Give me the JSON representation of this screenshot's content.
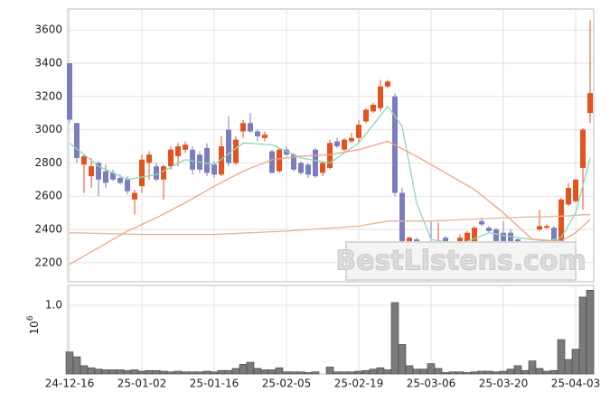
{
  "chart_data": {
    "type": "candlestick",
    "watermark": "BestListens.com",
    "categories": [
      "24-12-16",
      null,
      null,
      null,
      null,
      null,
      null,
      null,
      null,
      null,
      "25-01-02",
      null,
      null,
      null,
      null,
      null,
      null,
      null,
      null,
      null,
      "25-01-16",
      null,
      null,
      null,
      null,
      null,
      null,
      null,
      null,
      null,
      "25-02-05",
      null,
      null,
      null,
      null,
      null,
      null,
      null,
      null,
      null,
      "25-02-19",
      null,
      null,
      null,
      null,
      null,
      null,
      null,
      null,
      null,
      "25-03-06",
      null,
      null,
      null,
      null,
      null,
      null,
      null,
      null,
      null,
      "25-03-20",
      null,
      null,
      null,
      null,
      null,
      null,
      null,
      null,
      null,
      "25-04-03",
      null,
      null
    ],
    "open": [
      3400,
      3040,
      2790,
      2720,
      2800,
      2750,
      2740,
      2710,
      2700,
      2580,
      2660,
      2800,
      2780,
      2700,
      2780,
      2840,
      2880,
      2880,
      2850,
      2890,
      2790,
      2730,
      3000,
      2800,
      2990,
      3040,
      2990,
      2950,
      2870,
      2750,
      2880,
      2850,
      2800,
      2790,
      2880,
      2740,
      2770,
      2930,
      2880,
      2930,
      2950,
      3050,
      3110,
      3130,
      3260,
      3200,
      2620,
      2300,
      2340,
      2300,
      2310,
      2300,
      2350,
      2300,
      2290,
      2300,
      2320,
      2450,
      2410,
      2400,
      2380,
      2380,
      2340,
      2320,
      2300,
      2400,
      2410,
      2410,
      2310,
      2550,
      2570,
      2770,
      3100
    ],
    "high": [
      3400,
      3040,
      2850,
      2830,
      2810,
      2790,
      2760,
      2730,
      2720,
      2640,
      2850,
      2870,
      2800,
      2790,
      2900,
      2920,
      2930,
      2900,
      2870,
      2920,
      2810,
      2960,
      3080,
      2960,
      3060,
      3100,
      3000,
      2990,
      2880,
      2890,
      2900,
      2860,
      2810,
      2800,
      2890,
      2810,
      2940,
      2950,
      2950,
      2980,
      3060,
      3130,
      3160,
      3300,
      3300,
      3220,
      2650,
      2360,
      2350,
      2320,
      2450,
      2440,
      2360,
      2310,
      2370,
      2390,
      2420,
      2470,
      2420,
      2410,
      2450,
      2400,
      2350,
      2330,
      2310,
      2520,
      2430,
      2420,
      2590,
      2680,
      2700,
      3010,
      3660
    ],
    "low": [
      3040,
      2800,
      2620,
      2650,
      2600,
      2650,
      2690,
      2670,
      2610,
      2490,
      2620,
      2700,
      2690,
      2580,
      2760,
      2780,
      2860,
      2730,
      2740,
      2720,
      2710,
      2720,
      2780,
      2790,
      2950,
      2980,
      2930,
      2930,
      2740,
      2740,
      2840,
      2750,
      2730,
      2710,
      2710,
      2720,
      2760,
      2890,
      2870,
      2920,
      2920,
      3040,
      3100,
      3110,
      3250,
      2600,
      2270,
      2270,
      2260,
      2280,
      2280,
      2290,
      2280,
      2270,
      2280,
      2290,
      2310,
      2420,
      2380,
      2320,
      2260,
      2310,
      2290,
      2230,
      2270,
      2390,
      2400,
      2280,
      2290,
      2540,
      2560,
      2520,
      3040
    ],
    "close": [
      3060,
      2830,
      2840,
      2780,
      2700,
      2680,
      2700,
      2680,
      2630,
      2620,
      2820,
      2850,
      2700,
      2780,
      2880,
      2900,
      2910,
      2760,
      2760,
      2740,
      2730,
      2900,
      2800,
      2940,
      3040,
      2990,
      2960,
      2970,
      2740,
      2880,
      2850,
      2760,
      2740,
      2730,
      2720,
      2800,
      2920,
      2900,
      2940,
      2950,
      3030,
      3120,
      3150,
      3260,
      3290,
      2620,
      2280,
      2350,
      2280,
      2310,
      2290,
      2310,
      2290,
      2280,
      2350,
      2380,
      2410,
      2430,
      2390,
      2330,
      2270,
      2320,
      2300,
      2250,
      2280,
      2420,
      2420,
      2300,
      2580,
      2650,
      2700,
      3000,
      3220
    ],
    "up_color": "#e2531f",
    "down_color": "#7b7dbf",
    "series": [
      {
        "color": "#8fd6b4",
        "values": [
          2920,
          2885,
          2850,
          2815,
          2780,
          2760,
          2740,
          2720,
          2700,
          2708,
          2715,
          2722,
          2730,
          2752,
          2775,
          2798,
          2820,
          2812,
          2805,
          2798,
          2790,
          2822,
          2855,
          2888,
          2920,
          2918,
          2915,
          2912,
          2910,
          2890,
          2870,
          2850,
          2830,
          2822,
          2815,
          2808,
          2800,
          2830,
          2860,
          2890,
          2920,
          2975,
          3030,
          3085,
          3140,
          3080,
          3020,
          2790,
          2560,
          2450,
          2340,
          2332,
          2325,
          2318,
          2310,
          2328,
          2345,
          2362,
          2380,
          2372,
          2365,
          2358,
          2350,
          2345,
          2340,
          2335,
          2330,
          2340,
          2350,
          2425,
          2500,
          2665,
          2830
        ]
      },
      {
        "color": "#f0a382",
        "values": [
          2190,
          2215,
          2240,
          2265,
          2290,
          2315,
          2340,
          2365,
          2390,
          2410,
          2430,
          2450,
          2470,
          2492,
          2515,
          2538,
          2560,
          2585,
          2610,
          2635,
          2660,
          2682,
          2705,
          2728,
          2750,
          2768,
          2785,
          2802,
          2820,
          2825,
          2830,
          2835,
          2840,
          2842,
          2845,
          2848,
          2850,
          2858,
          2865,
          2872,
          2880,
          2892,
          2905,
          2918,
          2930,
          2908,
          2885,
          2862,
          2840,
          2815,
          2790,
          2765,
          2740,
          2715,
          2690,
          2665,
          2640,
          2605,
          2570,
          2535,
          2500,
          2460,
          2420,
          2380,
          2340,
          2338,
          2335,
          2332,
          2330,
          2355,
          2380,
          2420,
          2460
        ]
      },
      {
        "color": "#e4b496",
        "values": [
          2380,
          2379,
          2378,
          2377,
          2376,
          2375,
          2374,
          2373,
          2372,
          2371,
          2370,
          2370,
          2370,
          2370,
          2370,
          2370,
          2370,
          2370,
          2370,
          2370,
          2370,
          2372,
          2374,
          2376,
          2378,
          2380,
          2382,
          2384,
          2386,
          2388,
          2390,
          2393,
          2396,
          2399,
          2402,
          2405,
          2408,
          2411,
          2414,
          2417,
          2420,
          2428,
          2435,
          2442,
          2450,
          2450,
          2450,
          2450,
          2450,
          2450,
          2450,
          2452,
          2454,
          2456,
          2458,
          2460,
          2462,
          2464,
          2466,
          2468,
          2470,
          2471,
          2472,
          2474,
          2475,
          2476,
          2477,
          2479,
          2480,
          2482,
          2485,
          2488,
          2490
        ]
      }
    ],
    "ylim": [
      2085,
      3726
    ],
    "yticks": [
      2200,
      2400,
      2600,
      2800,
      3000,
      3200,
      3400,
      3600
    ],
    "grid": true,
    "volume": {
      "type": "bar",
      "color": "#7a7a7a",
      "ylabel_base": "10",
      "ylabel_exponent": "6",
      "values": [
        0.32,
        0.25,
        0.12,
        0.09,
        0.07,
        0.06,
        0.06,
        0.06,
        0.05,
        0.06,
        0.04,
        0.05,
        0.05,
        0.04,
        0.03,
        0.04,
        0.03,
        0.03,
        0.03,
        0.04,
        0.03,
        0.05,
        0.05,
        0.08,
        0.14,
        0.17,
        0.08,
        0.06,
        0.06,
        0.09,
        0.03,
        0.03,
        0.03,
        0.02,
        0.03,
        0,
        0.1,
        0.03,
        0.03,
        0.03,
        0.04,
        0.05,
        0.07,
        0.09,
        0.06,
        1.04,
        0.43,
        0.12,
        0.07,
        0.07,
        0.15,
        0.08,
        0.02,
        0.03,
        0.03,
        0.02,
        0.03,
        0.04,
        0.04,
        0.03,
        0.04,
        0.07,
        0.12,
        0.05,
        0.19,
        0.08,
        0.04,
        0.05,
        0.5,
        0.21,
        0.36,
        1.12,
        1.22
      ],
      "ylim": [
        0,
        1.29
      ],
      "yticks": [
        {
          "value": 1,
          "label": "1.0"
        }
      ]
    }
  }
}
